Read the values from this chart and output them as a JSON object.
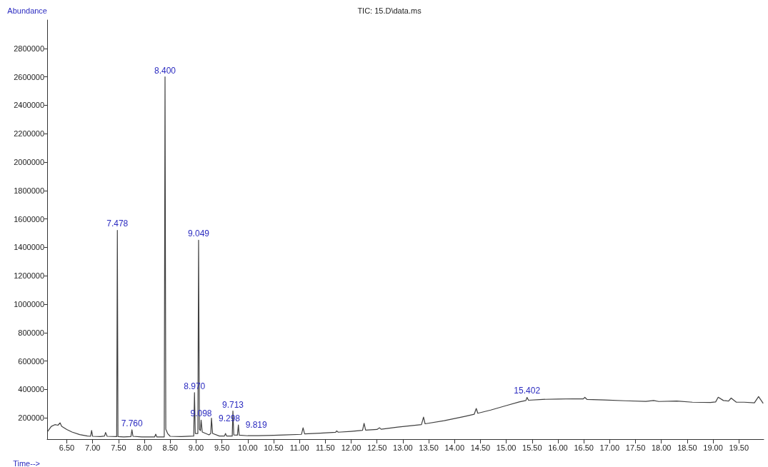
{
  "chart_data": {
    "type": "line",
    "title": "TIC: 15.D\\data.ms",
    "xlabel": "Time-->",
    "ylabel": "Abundance",
    "xlim": [
      6.12,
      19.98
    ],
    "xticks": [
      {
        "value": 6.5,
        "label": "6.50"
      },
      {
        "value": 7,
        "label": "7.00"
      },
      {
        "value": 7.5,
        "label": "7.50"
      },
      {
        "value": 8,
        "label": "8.00"
      },
      {
        "value": 8.5,
        "label": "8.50"
      },
      {
        "value": 9,
        "label": "9.00"
      },
      {
        "value": 9.5,
        "label": "9.50"
      },
      {
        "value": 10,
        "label": "10.00"
      },
      {
        "value": 10.5,
        "label": "10.50"
      },
      {
        "value": 11,
        "label": "11.00"
      },
      {
        "value": 11.5,
        "label": "11.50"
      },
      {
        "value": 12,
        "label": "12.00"
      },
      {
        "value": 12.5,
        "label": "12.50"
      },
      {
        "value": 13,
        "label": "13.00"
      },
      {
        "value": 13.5,
        "label": "13.50"
      },
      {
        "value": 14,
        "label": "14.00"
      },
      {
        "value": 14.5,
        "label": "14.50"
      },
      {
        "value": 15,
        "label": "15.00"
      },
      {
        "value": 15.5,
        "label": "15.50"
      },
      {
        "value": 16,
        "label": "16.00"
      },
      {
        "value": 16.5,
        "label": "16.50"
      },
      {
        "value": 17,
        "label": "17.00"
      },
      {
        "value": 17.5,
        "label": "17.50"
      },
      {
        "value": 18,
        "label": "18.00"
      },
      {
        "value": 18.5,
        "label": "18.50"
      },
      {
        "value": 19,
        "label": "19.00"
      },
      {
        "value": 19.5,
        "label": "19.50"
      }
    ],
    "ylim": [
      50000,
      3000000
    ],
    "yticks": [
      200000,
      400000,
      600000,
      800000,
      1000000,
      1200000,
      1400000,
      1600000,
      1800000,
      2000000,
      2200000,
      2400000,
      2600000,
      2800000
    ],
    "grid": false,
    "marker": "none",
    "line_style": "solid",
    "series": [
      {
        "color": "#404040",
        "x": [
          6.13,
          6.2,
          6.27,
          6.33,
          6.37,
          6.4,
          6.5,
          6.6,
          6.75,
          6.9,
          6.96,
          6.98,
          7.0,
          7.15,
          7.23,
          7.25,
          7.28,
          7.45,
          7.465,
          7.478,
          7.49,
          7.6,
          7.74,
          7.76,
          7.78,
          7.95,
          8.2,
          8.22,
          8.24,
          8.385,
          8.4,
          8.415,
          8.45,
          8.5,
          8.7,
          8.955,
          8.97,
          8.985,
          9.035,
          9.049,
          9.065,
          9.085,
          9.098,
          9.12,
          9.25,
          9.285,
          9.298,
          9.32,
          9.45,
          9.55,
          9.57,
          9.59,
          9.7,
          9.713,
          9.73,
          9.8,
          9.819,
          9.835,
          10.0,
          10.2,
          10.5,
          10.7,
          11.04,
          11.07,
          11.1,
          11.4,
          11.7,
          11.72,
          11.75,
          12.0,
          12.22,
          12.25,
          12.28,
          12.5,
          12.55,
          12.58,
          12.9,
          13.36,
          13.4,
          13.43,
          13.8,
          14.2,
          14.38,
          14.42,
          14.45,
          14.7,
          15.0,
          15.25,
          15.38,
          15.402,
          15.43,
          15.7,
          16.0,
          16.3,
          16.49,
          16.52,
          16.56,
          16.9,
          17.3,
          17.7,
          17.85,
          17.95,
          18.3,
          18.6,
          18.95,
          19.05,
          19.1,
          19.2,
          19.3,
          19.35,
          19.45,
          19.6,
          19.8,
          19.88,
          19.97
        ],
        "values": [
          105000,
          140000,
          152000,
          148000,
          165000,
          140000,
          118000,
          100000,
          82000,
          72000,
          70000,
          111000,
          70000,
          68000,
          72000,
          97000,
          70000,
          68000,
          68000,
          1520000,
          68000,
          66000,
          68000,
          116000,
          70000,
          66000,
          66000,
          85000,
          66000,
          66000,
          2600000,
          120000,
          90000,
          70000,
          68000,
          72000,
          378000,
          90000,
          90000,
          1450000,
          120000,
          110000,
          184000,
          100000,
          80000,
          90000,
          198000,
          90000,
          72000,
          72000,
          90000,
          72000,
          72000,
          248000,
          80000,
          78000,
          150000,
          78000,
          74000,
          74000,
          77000,
          80000,
          84000,
          130000,
          87000,
          92000,
          98000,
          108000,
          99000,
          105000,
          112000,
          161000,
          113000,
          118000,
          130000,
          120000,
          135000,
          152000,
          205000,
          158000,
          180000,
          210000,
          225000,
          266000,
          232000,
          255000,
          286000,
          312000,
          322000,
          344000,
          324000,
          330000,
          332000,
          334000,
          333000,
          344000,
          330000,
          326000,
          320000,
          316000,
          322000,
          315000,
          318000,
          310000,
          308000,
          312000,
          345000,
          322000,
          318000,
          339000,
          310000,
          310000,
          306000,
          350000,
          302000
        ]
      }
    ],
    "annotations": [
      {
        "text": "7.478",
        "x": 7.478,
        "y": 1520000
      },
      {
        "text": "7.760",
        "x": 7.76,
        "y": 116000
      },
      {
        "text": "8.400",
        "x": 8.4,
        "y": 2600000
      },
      {
        "text": "8.970",
        "x": 8.97,
        "y": 378000
      },
      {
        "text": "9.049",
        "x": 9.049,
        "y": 1450000
      },
      {
        "text": "9.098",
        "x": 9.098,
        "y": 184000
      },
      {
        "text": "9.298",
        "x": 9.298,
        "y": 198000
      },
      {
        "text": "9.713",
        "x": 9.713,
        "y": 248000
      },
      {
        "text": "9.819",
        "x": 9.819,
        "y": 150000
      },
      {
        "text": "15.402",
        "x": 15.402,
        "y": 344000
      }
    ]
  }
}
